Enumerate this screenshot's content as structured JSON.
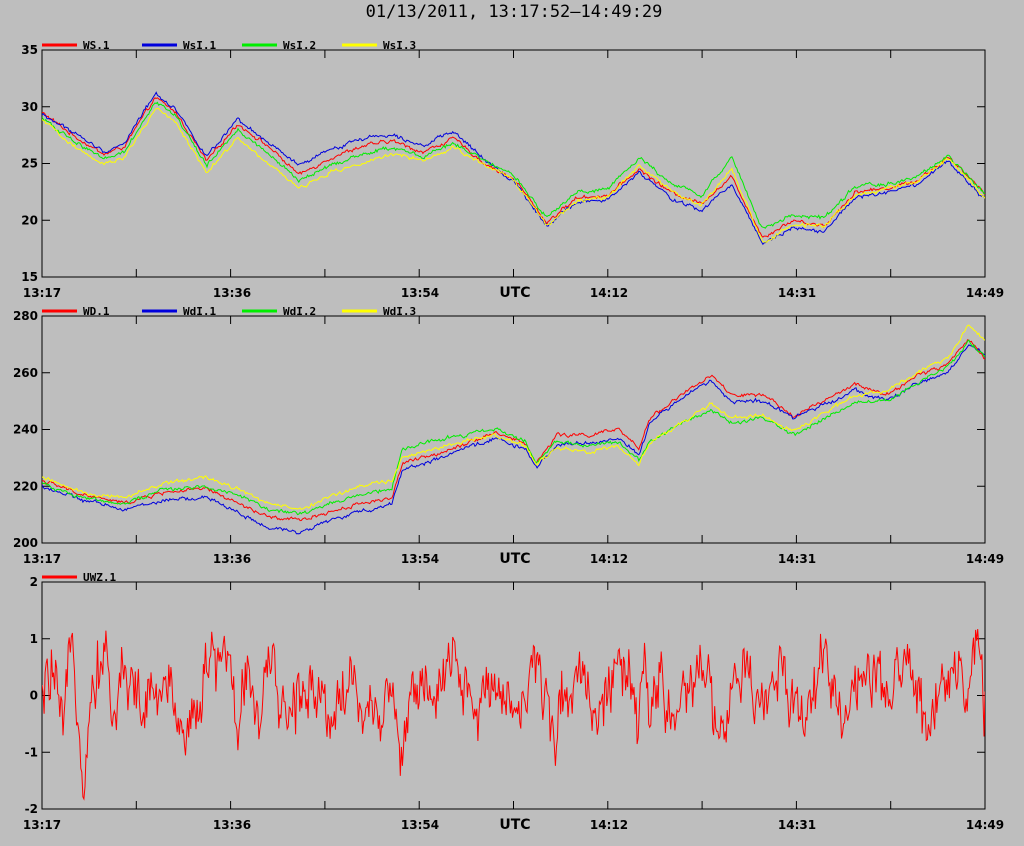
{
  "title": "01/13/2011, 13:17:52–14:49:29",
  "chart_data": [
    {
      "type": "line",
      "xlabel": "UTC",
      "x_ticks": [
        "13:17",
        "13:36",
        "13:54",
        "14:12",
        "14:31",
        "14:49"
      ],
      "xlim": [
        "13:17:52",
        "14:49:29"
      ],
      "ylim": [
        15,
        35
      ],
      "y_ticks": [
        15,
        20,
        25,
        30,
        35
      ],
      "legend_position": "top-left",
      "series": [
        {
          "name": "WS.1",
          "color": "#ff0000",
          "t": [
            0,
            3,
            6,
            8,
            11,
            13,
            16,
            19,
            22,
            25,
            28,
            31,
            34,
            37,
            40,
            43,
            46,
            49,
            52,
            55,
            58,
            61,
            64,
            67,
            70,
            73,
            76,
            79,
            82,
            85,
            88,
            91.6
          ],
          "values": [
            29.5,
            27.5,
            25.8,
            26.5,
            30.8,
            29.5,
            25.2,
            28.5,
            26.5,
            24.0,
            25.5,
            26.5,
            27.0,
            26.0,
            27.2,
            25.0,
            23.5,
            19.8,
            22.0,
            22.2,
            24.5,
            22.5,
            21.5,
            23.8,
            18.5,
            20.0,
            19.5,
            22.5,
            22.8,
            23.5,
            25.5,
            22.5
          ]
        },
        {
          "name": "WsI.1",
          "color": "#0000dd",
          "t": [
            0,
            3,
            6,
            8,
            11,
            13,
            16,
            19,
            22,
            25,
            28,
            31,
            34,
            37,
            40,
            43,
            46,
            49,
            52,
            55,
            58,
            61,
            64,
            67,
            70,
            73,
            76,
            79,
            82,
            85,
            88,
            91.6
          ],
          "values": [
            29.3,
            27.8,
            26.0,
            26.8,
            31.2,
            29.8,
            25.6,
            28.8,
            26.8,
            24.8,
            26.2,
            27.2,
            27.6,
            26.6,
            27.8,
            25.3,
            23.3,
            19.6,
            21.6,
            21.8,
            24.2,
            22.0,
            20.8,
            23.2,
            18.0,
            19.4,
            19.0,
            22.0,
            22.4,
            23.1,
            25.2,
            21.8
          ]
        },
        {
          "name": "WsI.2",
          "color": "#00ee00",
          "t": [
            0,
            3,
            6,
            8,
            11,
            13,
            16,
            19,
            22,
            25,
            28,
            31,
            34,
            37,
            40,
            43,
            46,
            49,
            52,
            55,
            58,
            61,
            64,
            67,
            70,
            73,
            76,
            79,
            82,
            85,
            88,
            91.6
          ],
          "values": [
            29.0,
            27.0,
            25.5,
            26.0,
            30.5,
            29.2,
            24.8,
            28.0,
            25.8,
            23.5,
            24.8,
            25.8,
            26.4,
            25.6,
            26.8,
            25.2,
            23.8,
            20.2,
            22.5,
            22.8,
            25.5,
            23.4,
            22.2,
            25.5,
            19.2,
            20.5,
            20.2,
            23.0,
            23.2,
            23.8,
            25.7,
            22.3
          ]
        },
        {
          "name": "WsI.3",
          "color": "#ffff00",
          "t": [
            0,
            3,
            6,
            8,
            11,
            13,
            16,
            19,
            22,
            25,
            28,
            31,
            34,
            37,
            40,
            43,
            46,
            49,
            52,
            55,
            58,
            61,
            64,
            67,
            70,
            73,
            76,
            79,
            82,
            85,
            88,
            91.6
          ],
          "values": [
            28.8,
            26.6,
            25.0,
            25.5,
            29.8,
            28.6,
            24.2,
            27.3,
            25.0,
            22.8,
            24.2,
            25.0,
            25.8,
            25.2,
            26.4,
            24.9,
            23.4,
            19.5,
            21.8,
            22.0,
            24.8,
            22.7,
            21.2,
            24.5,
            18.0,
            19.6,
            19.5,
            22.2,
            22.8,
            23.4,
            25.4,
            22.0
          ]
        }
      ]
    },
    {
      "type": "line",
      "xlabel": "UTC",
      "x_ticks": [
        "13:17",
        "13:36",
        "13:54",
        "14:12",
        "14:31",
        "14:49"
      ],
      "xlim": [
        "13:17:52",
        "14:49:29"
      ],
      "ylim": [
        200,
        280
      ],
      "y_ticks": [
        200,
        220,
        240,
        260,
        280
      ],
      "legend_position": "top-left",
      "series": [
        {
          "name": "WD.1",
          "color": "#ff0000",
          "t": [
            0,
            4,
            8,
            12,
            16,
            19,
            22,
            25,
            28,
            31,
            34,
            35,
            38,
            41,
            44,
            47,
            48,
            50,
            53,
            56,
            58,
            59,
            62,
            65,
            67,
            70,
            73,
            76,
            79,
            82,
            85,
            88,
            90,
            91.6
          ],
          "values": [
            222,
            217,
            214,
            218,
            219,
            214,
            209,
            208,
            211,
            214,
            216,
            228,
            231,
            235,
            239,
            235,
            228,
            238,
            238,
            240,
            233,
            244,
            252,
            259,
            252,
            252,
            245,
            250,
            256,
            252,
            259,
            263,
            272,
            265
          ]
        },
        {
          "name": "WdI.1",
          "color": "#0000dd",
          "t": [
            0,
            4,
            8,
            12,
            16,
            19,
            22,
            25,
            28,
            31,
            34,
            35,
            38,
            41,
            44,
            47,
            48,
            50,
            53,
            56,
            58,
            59,
            62,
            65,
            67,
            70,
            73,
            76,
            79,
            82,
            85,
            88,
            90,
            91.6
          ],
          "values": [
            220,
            215,
            212,
            215,
            216,
            211,
            205,
            204,
            208,
            211,
            214,
            226,
            229,
            233,
            237,
            233,
            226,
            235,
            235,
            237,
            231,
            242,
            251,
            257,
            250,
            250,
            244,
            249,
            254,
            250,
            256,
            260,
            270,
            266
          ]
        },
        {
          "name": "WdI.2",
          "color": "#00ee00",
          "t": [
            0,
            4,
            8,
            12,
            16,
            19,
            22,
            25,
            28,
            31,
            34,
            35,
            38,
            41,
            44,
            47,
            48,
            50,
            53,
            56,
            58,
            59,
            62,
            65,
            67,
            70,
            73,
            76,
            79,
            82,
            85,
            88,
            90,
            91.6
          ],
          "values": [
            221,
            216,
            214,
            219,
            220,
            217,
            212,
            210,
            214,
            217,
            219,
            233,
            236,
            238,
            240,
            236,
            228,
            236,
            234,
            236,
            229,
            236,
            242,
            247,
            242,
            244,
            238,
            244,
            250,
            250,
            256,
            262,
            271,
            266
          ]
        },
        {
          "name": "WdI.3",
          "color": "#ffff00",
          "t": [
            0,
            4,
            8,
            12,
            16,
            19,
            22,
            25,
            28,
            31,
            34,
            35,
            38,
            41,
            44,
            47,
            48,
            50,
            53,
            56,
            58,
            59,
            62,
            65,
            67,
            70,
            73,
            76,
            79,
            82,
            85,
            88,
            90,
            91.6
          ],
          "values": [
            223,
            218,
            216,
            221,
            223,
            219,
            214,
            212,
            216,
            220,
            222,
            230,
            233,
            236,
            238,
            234,
            227,
            234,
            232,
            234,
            228,
            235,
            242,
            249,
            244,
            245,
            239,
            246,
            252,
            254,
            260,
            265,
            277,
            272
          ]
        }
      ]
    },
    {
      "type": "line",
      "xlabel": "UTC",
      "x_ticks": [
        "13:17",
        "13:36",
        "13:54",
        "14:12",
        "14:31",
        "14:49"
      ],
      "xlim": [
        "13:17:52",
        "14:49:29"
      ],
      "ylim": [
        -2,
        2
      ],
      "y_ticks": [
        -2,
        -1,
        0,
        1,
        2
      ],
      "legend_position": "top-left",
      "series": [
        {
          "name": "UWZ.1",
          "color": "#ff0000",
          "t": [
            0,
            1,
            2,
            3,
            4,
            5,
            6,
            7,
            8,
            9,
            10,
            12,
            14,
            16,
            18,
            19,
            20,
            21,
            22,
            24,
            26,
            28,
            30,
            32,
            34,
            35,
            36,
            38,
            40,
            42,
            44,
            46,
            48,
            50,
            52,
            54,
            56,
            58,
            58.5,
            59,
            60,
            62,
            64,
            66,
            68,
            70,
            72,
            74,
            76,
            78,
            80,
            82,
            84,
            86,
            88,
            90,
            91,
            91.6
          ],
          "values": [
            -0.2,
            0.5,
            -0.9,
            1.1,
            -1.3,
            0.3,
            0.9,
            -0.5,
            0.6,
            0.1,
            -0.3,
            0.2,
            -0.6,
            0.4,
            0.9,
            -0.8,
            0.8,
            -0.5,
            0.3,
            -0.4,
            0.4,
            -0.3,
            0.3,
            -0.5,
            0.3,
            -1.2,
            0.4,
            -0.3,
            0.6,
            -0.4,
            0.5,
            -0.3,
            0.4,
            -0.5,
            0.6,
            -0.3,
            0.6,
            -0.6,
            0.6,
            -0.4,
            0.3,
            -0.5,
            0.5,
            -0.7,
            0.4,
            -0.3,
            0.6,
            -0.5,
            0.8,
            -0.4,
            0.5,
            -0.3,
            0.7,
            -0.5,
            0.6,
            0.2,
            0.7,
            -0.3
          ]
        }
      ]
    }
  ]
}
